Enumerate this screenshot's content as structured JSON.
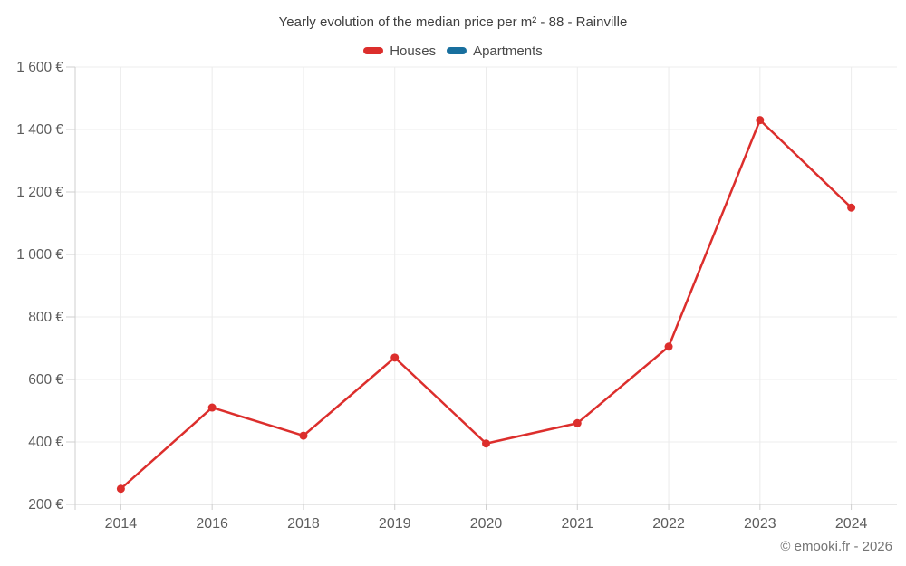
{
  "chart": {
    "title": "Yearly evolution of the median price per m² - 88 - Rainville"
  },
  "legend": {
    "items": [
      {
        "label": "Houses",
        "color": "#dc2e2c"
      },
      {
        "label": "Apartments",
        "color": "#186f9e"
      }
    ]
  },
  "chart_data": {
    "type": "line",
    "title": "Yearly evolution of the median price per m² - 88 - Rainville",
    "categories": [
      "2014",
      "2016",
      "2018",
      "2019",
      "2020",
      "2021",
      "2022",
      "2023",
      "2024"
    ],
    "series": [
      {
        "name": "Houses",
        "color": "#dc2e2c",
        "values": [
          250,
          510,
          420,
          670,
          395,
          460,
          705,
          1430,
          1150
        ]
      },
      {
        "name": "Apartments",
        "color": "#186f9e",
        "values": []
      }
    ],
    "xlabel": "",
    "ylabel": "",
    "ylim": [
      200,
      1600
    ],
    "ytick_step": 200,
    "ytick_suffix": " €",
    "grid": true,
    "legend_position": "top"
  },
  "footer": {
    "copyright": "© emooki.fr - 2026"
  }
}
